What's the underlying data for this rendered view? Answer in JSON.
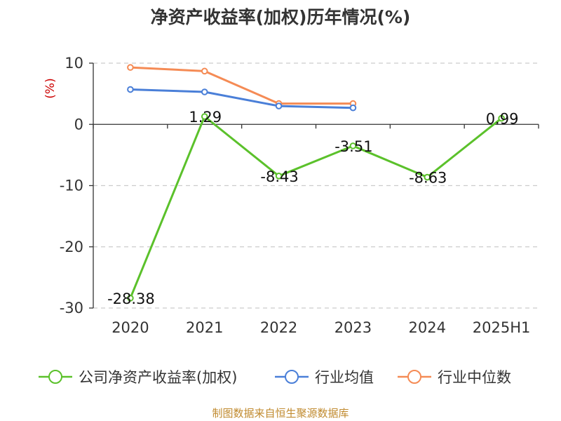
{
  "chart_data": {
    "type": "line",
    "title": "净资产收益率(加权)历年情况(%)",
    "ylabel": "(%)",
    "categories": [
      "2020",
      "2021",
      "2022",
      "2023",
      "2024",
      "2025H1"
    ],
    "ylim": [
      -30,
      10
    ],
    "yticks": [
      10,
      0,
      -10,
      -20,
      -30
    ],
    "grid": true,
    "legend_position": "bottom",
    "series": [
      {
        "name": "公司净资产收益率(加权)",
        "color": "#5bc12b",
        "values": [
          -28.38,
          1.29,
          -8.43,
          -3.51,
          -8.63,
          0.99
        ],
        "labels": [
          "-28.38",
          "1.29",
          "-8.43",
          "-3.51",
          "-8.63",
          "0.99"
        ]
      },
      {
        "name": "行业均值",
        "color": "#4a7fd8",
        "values": [
          5.7,
          5.3,
          3.0,
          2.7,
          null,
          null
        ],
        "labels": []
      },
      {
        "name": "行业中位数",
        "color": "#f58b55",
        "values": [
          9.3,
          8.7,
          3.4,
          3.4,
          null,
          null
        ],
        "labels": []
      }
    ],
    "source": "制图数据来自恒生聚源数据库",
    "colors": {
      "title": "#333333",
      "ylabel": "#cc0000",
      "source": "#c08a2e",
      "grid": "#cccccc",
      "axis": "#333333"
    }
  }
}
